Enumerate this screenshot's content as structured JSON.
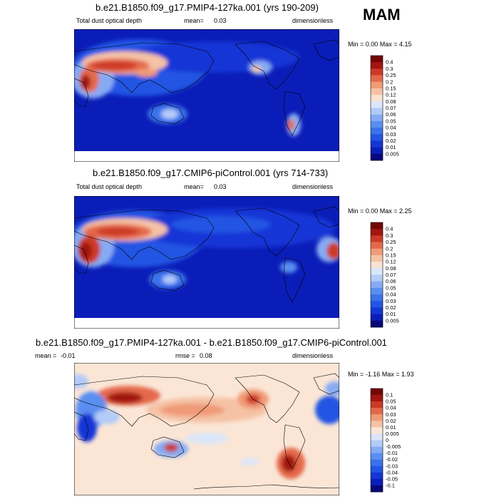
{
  "season": "MAM",
  "panels": [
    {
      "title": "b.e21.B1850.f09_g17.PMIP4-127ka.001 (yrs 190-209)",
      "left_label": "Total dust optical depth",
      "mean_label": "mean=",
      "mean_value": "0.03",
      "units": "dimensionless",
      "minmax": "Min =  0.00 Max =  4.15",
      "colorbar_labels": [
        "0.4",
        "0.3",
        "0.25",
        "0.2",
        "0.15",
        "0.12",
        "0.08",
        "0.07",
        "0.06",
        "0.05",
        "0.04",
        "0.03",
        "0.02",
        "0.01",
        "0.005"
      ]
    },
    {
      "title": "b.e21.B1850.f09_g17.CMIP6-piControl.001 (yrs 714-733)",
      "left_label": "Total dust optical depth",
      "mean_label": "mean=",
      "mean_value": "0.03",
      "units": "dimensionless",
      "minmax": "Min =  0.00 Max =  2.25",
      "colorbar_labels": [
        "0.4",
        "0.3",
        "0.25",
        "0.2",
        "0.15",
        "0.12",
        "0.08",
        "0.07",
        "0.06",
        "0.05",
        "0.04",
        "0.03",
        "0.02",
        "0.01",
        "0.005"
      ]
    },
    {
      "title": "b.e21.B1850.f09_g17.PMIP4-127ka.001 - b.e21.B1850.f09_g17.CMIP6-piControl.001",
      "mean_label": "mean =",
      "mean_value": "-0.01",
      "rmse_label": "rmse =",
      "rmse_value": "0.08",
      "units": "dimensionless",
      "minmax": "Min = -1.16 Max =  1.93",
      "colorbar_labels": [
        "0.1",
        "0.05",
        "0.04",
        "0.03",
        "0.02",
        "0.01",
        "0.005",
        "0",
        "-0.005",
        "-0.01",
        "-0.02",
        "-0.03",
        "-0.04",
        "-0.05",
        "-0.1"
      ]
    }
  ],
  "chart_data": [
    {
      "type": "heatmap",
      "title": "b.e21.B1850.f09_g17.PMIP4-127ka.001 (yrs 190-209)",
      "variable": "Total dust optical depth",
      "units": "dimensionless",
      "mean": 0.03,
      "min": 0.0,
      "max": 4.15,
      "levels": [
        0.005,
        0.01,
        0.02,
        0.03,
        0.04,
        0.05,
        0.06,
        0.07,
        0.08,
        0.12,
        0.15,
        0.2,
        0.25,
        0.3,
        0.4
      ],
      "colors": [
        "#08087a",
        "#0b1db8",
        "#1436d6",
        "#2255e3",
        "#3a72ea",
        "#5a8ef0",
        "#86abf4",
        "#b3cbf7",
        "#dbe6fa",
        "#f8e3d3",
        "#f5c2a6",
        "#f09a77",
        "#e4694c",
        "#cc3a27",
        "#a3160f",
        "#750606"
      ]
    },
    {
      "type": "heatmap",
      "title": "b.e21.B1850.f09_g17.CMIP6-piControl.001 (yrs 714-733)",
      "variable": "Total dust optical depth",
      "units": "dimensionless",
      "mean": 0.03,
      "min": 0.0,
      "max": 2.25,
      "levels": [
        0.005,
        0.01,
        0.02,
        0.03,
        0.04,
        0.05,
        0.06,
        0.07,
        0.08,
        0.12,
        0.15,
        0.2,
        0.25,
        0.3,
        0.4
      ],
      "colors": [
        "#08087a",
        "#0b1db8",
        "#1436d6",
        "#2255e3",
        "#3a72ea",
        "#5a8ef0",
        "#86abf4",
        "#b3cbf7",
        "#dbe6fa",
        "#f8e3d3",
        "#f5c2a6",
        "#f09a77",
        "#e4694c",
        "#cc3a27",
        "#a3160f",
        "#750606"
      ]
    },
    {
      "type": "heatmap",
      "title": "b.e21.B1850.f09_g17.PMIP4-127ka.001 - b.e21.B1850.f09_g17.CMIP6-piControl.001",
      "units": "dimensionless",
      "mean": -0.01,
      "rmse": 0.08,
      "min": -1.16,
      "max": 1.93,
      "levels": [
        -0.1,
        -0.05,
        -0.04,
        -0.03,
        -0.02,
        -0.01,
        -0.005,
        0,
        0.005,
        0.01,
        0.02,
        0.03,
        0.04,
        0.05,
        0.1
      ],
      "colors": [
        "#08087a",
        "#0b1db8",
        "#1436d6",
        "#2255e3",
        "#3a72ea",
        "#5a8ef0",
        "#86abf4",
        "#b3cbf7",
        "#dbe6fa",
        "#fbe6d6",
        "#f5c2a6",
        "#f09a77",
        "#e4694c",
        "#cc3a27",
        "#a3160f",
        "#750606"
      ]
    }
  ]
}
